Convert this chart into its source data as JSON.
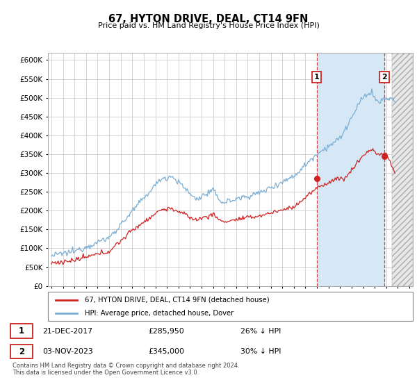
{
  "title": "67, HYTON DRIVE, DEAL, CT14 9FN",
  "subtitle": "Price paid vs. HM Land Registry's House Price Index (HPI)",
  "ytick_values": [
    0,
    50000,
    100000,
    150000,
    200000,
    250000,
    300000,
    350000,
    400000,
    450000,
    500000,
    550000,
    600000
  ],
  "ylim": [
    0,
    620000
  ],
  "xlim_start": 1994.7,
  "xlim_end": 2026.3,
  "hpi_color": "#7aadd4",
  "hpi_fill_color": "#d6e8f5",
  "price_color": "#cc2222",
  "marker1_x": 2017.97,
  "marker1_y": 285950,
  "marker2_x": 2023.84,
  "marker2_y": 345000,
  "legend_line1": "67, HYTON DRIVE, DEAL, CT14 9FN (detached house)",
  "legend_line2": "HPI: Average price, detached house, Dover",
  "marker1_date": "21-DEC-2017",
  "marker1_price": "£285,950",
  "marker1_pct": "26% ↓ HPI",
  "marker2_date": "03-NOV-2023",
  "marker2_price": "£345,000",
  "marker2_pct": "30% ↓ HPI",
  "footnote": "Contains HM Land Registry data © Crown copyright and database right 2024.\nThis data is licensed under the Open Government Licence v3.0.",
  "bg_color": "#FFFFFF",
  "grid_color": "#CCCCCC",
  "future_shade_color": "#E8E8E8"
}
